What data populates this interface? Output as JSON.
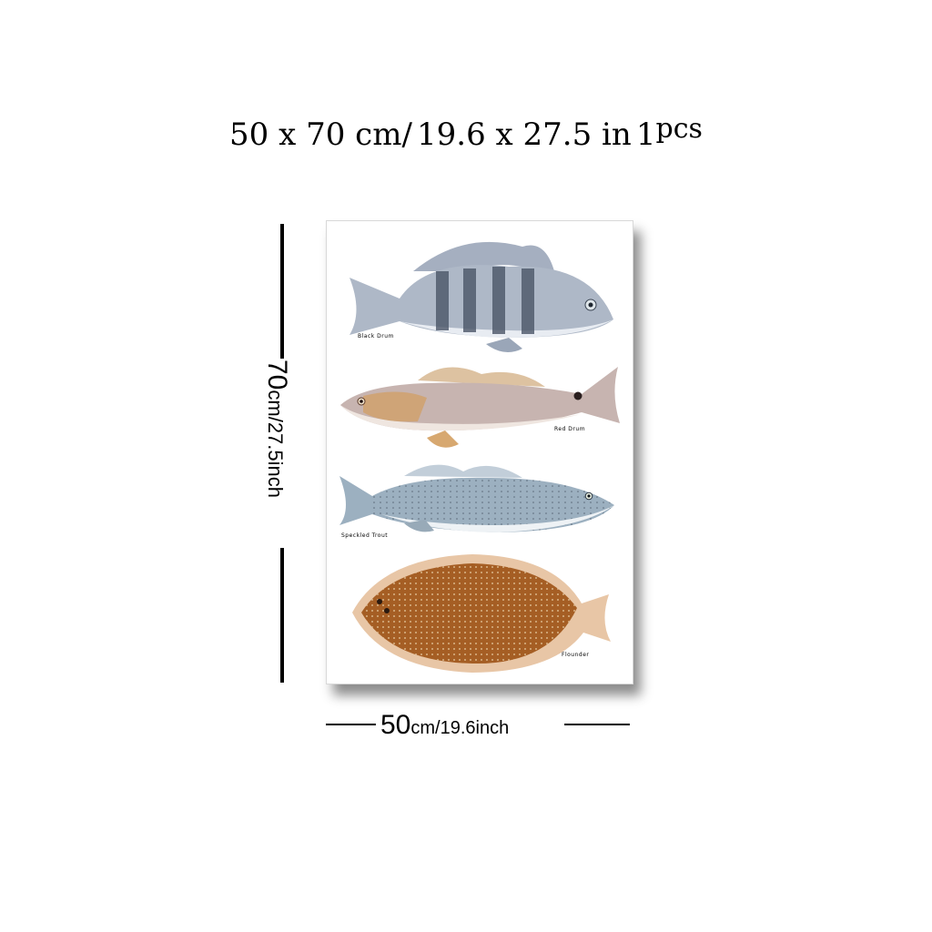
{
  "title": {
    "size_cm": "50 x 70 cm/",
    "size_in": "19.6 x 27.5 in",
    "qty": "1",
    "qty_unit": "pcs"
  },
  "poster": {
    "fish": [
      {
        "name": "Black Drum",
        "color": "#7b8aa0"
      },
      {
        "name": "Red Drum",
        "color": "#c9a583"
      },
      {
        "name": "Speckled Trout",
        "color": "#8aa2b4"
      },
      {
        "name": "Flounder",
        "color": "#b06a2a"
      }
    ]
  },
  "height_dim": {
    "value": "70",
    "unit": "cm/27.5inch"
  },
  "width_dim": {
    "value": "50",
    "unit": "cm/19.6inch"
  }
}
